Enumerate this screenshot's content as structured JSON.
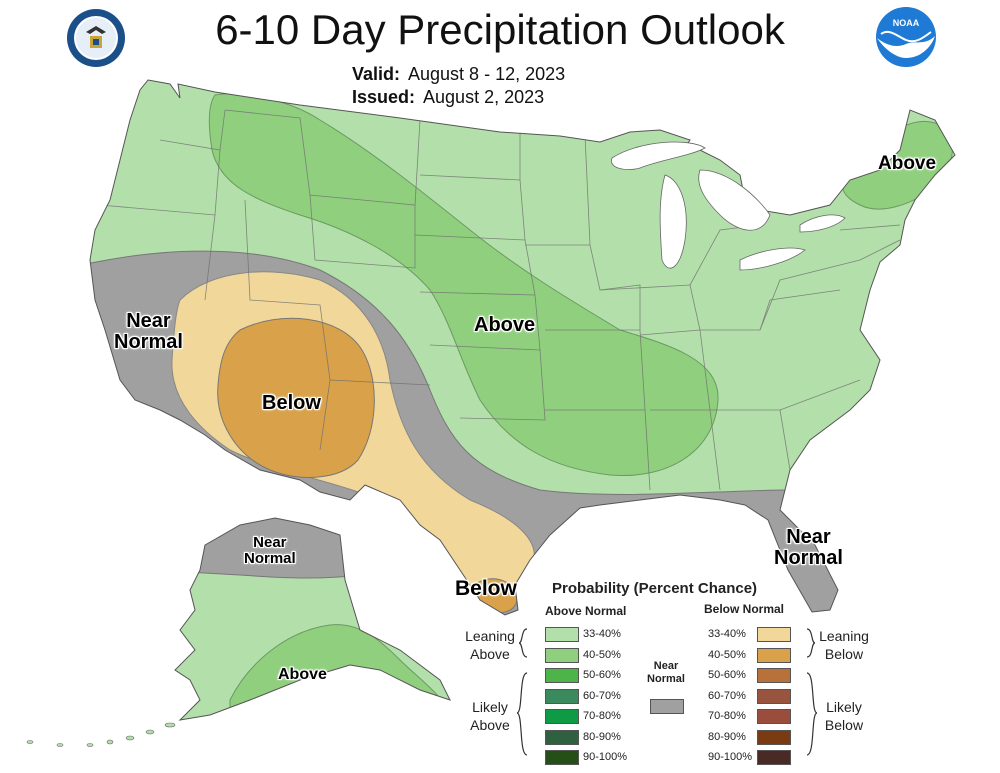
{
  "header": {
    "title": "6-10 Day Precipitation Outlook",
    "valid_label": "Valid:",
    "valid_value": "August 8 - 12, 2023",
    "issued_label": "Issued:",
    "issued_value": "August 2, 2023"
  },
  "logos": {
    "left": "department-of-commerce-seal",
    "right": "noaa-logo",
    "right_text": "NOAA"
  },
  "map_labels": {
    "above_ne": "Above",
    "above_central": "Above",
    "near_normal_west_1": "Near",
    "near_normal_west_2": "Normal",
    "below_sw": "Below",
    "below_tx": "Below",
    "near_normal_fl_1": "Near",
    "near_normal_fl_2": "Normal",
    "ak_near_normal_1": "Near",
    "ak_near_normal_2": "Normal",
    "ak_above": "Above"
  },
  "legend": {
    "title": "Probability (Percent Chance)",
    "above_header": "Above Normal",
    "below_header": "Below Normal",
    "leaning_above": [
      "Leaning",
      "Above"
    ],
    "likely_above": [
      "Likely",
      "Above"
    ],
    "leaning_below": [
      "Leaning",
      "Below"
    ],
    "likely_below": [
      "Likely",
      "Below"
    ],
    "near_normal": [
      "Near",
      "Normal"
    ],
    "above": [
      {
        "label": "33-40%",
        "color": "#b3dfaa"
      },
      {
        "label": "40-50%",
        "color": "#90cf7e"
      },
      {
        "label": "50-60%",
        "color": "#4db44a"
      },
      {
        "label": "60-70%",
        "color": "#3b8a5e"
      },
      {
        "label": "70-80%",
        "color": "#0f9a45"
      },
      {
        "label": "80-90%",
        "color": "#2f6040"
      },
      {
        "label": "90-100%",
        "color": "#245018"
      }
    ],
    "below": [
      {
        "label": "33-40%",
        "color": "#f2d79a"
      },
      {
        "label": "40-50%",
        "color": "#d8a14a"
      },
      {
        "label": "50-60%",
        "color": "#b8713a"
      },
      {
        "label": "60-70%",
        "color": "#995440"
      },
      {
        "label": "70-80%",
        "color": "#9a4d3c"
      },
      {
        "label": "80-90%",
        "color": "#7a3a12"
      },
      {
        "label": "90-100%",
        "color": "#4a2a24"
      }
    ],
    "near_normal_color": "#a0a0a0"
  }
}
